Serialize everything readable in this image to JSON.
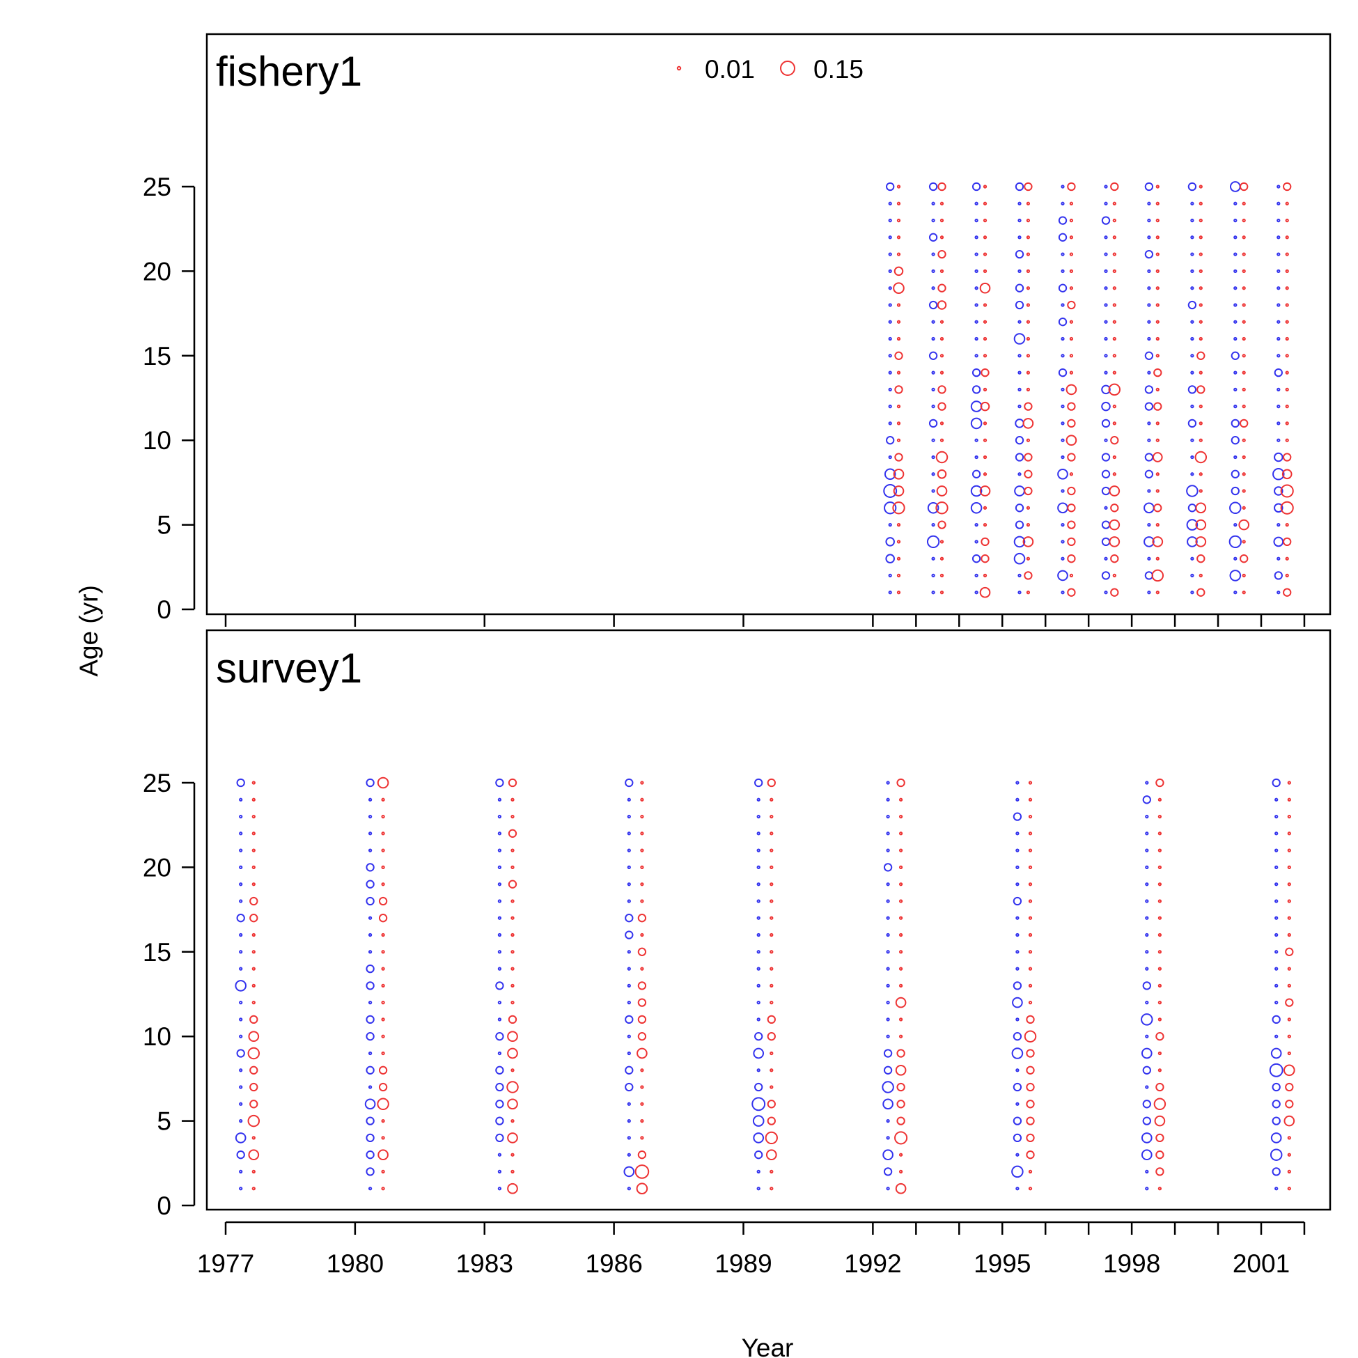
{
  "chart_data": {
    "type": "scatter",
    "subtype": "bubble",
    "xlabel": "Year",
    "ylabel": "Age (yr)",
    "x_ticks": [
      1977,
      1980,
      1983,
      1986,
      1989,
      1992,
      1995,
      1998,
      2001
    ],
    "y_ticks": [
      0,
      5,
      10,
      15,
      20,
      25
    ],
    "xlim": [
      1976.5,
      2003.5
    ],
    "ylim": [
      -0.5,
      33.5
    ],
    "legend": {
      "placement": "top-center",
      "entries": [
        {
          "label": "0.01",
          "value": 0.01
        },
        {
          "label": "0.15",
          "value": 0.15
        }
      ]
    },
    "colors": {
      "series_a": "#3333ee",
      "series_b": "#ee3333"
    },
    "ages": [
      1,
      2,
      3,
      4,
      5,
      6,
      7,
      8,
      9,
      10,
      11,
      12,
      13,
      14,
      15,
      16,
      17,
      18,
      19,
      20,
      21,
      22,
      23,
      24,
      25
    ],
    "panels": [
      {
        "title": "fishery1",
        "series": [
          {
            "color": "series_a",
            "points": [
              {
                "year": 1992.4,
                "big": {
                  "3": 0.05,
                  "4": 0.05,
                  "6": 0.1,
                  "7": 0.12,
                  "8": 0.08,
                  "10": 0.04,
                  "25": 0.04
                }
              },
              {
                "year": 1993.4,
                "big": {
                  "4": 0.1,
                  "6": 0.08,
                  "11": 0.04,
                  "15": 0.04,
                  "18": 0.04,
                  "22": 0.04,
                  "25": 0.04
                }
              },
              {
                "year": 1994.4,
                "big": {
                  "3": 0.04,
                  "6": 0.08,
                  "7": 0.08,
                  "8": 0.04,
                  "11": 0.08,
                  "12": 0.08,
                  "13": 0.04,
                  "14": 0.04,
                  "25": 0.04
                }
              },
              {
                "year": 1995.4,
                "big": {
                  "3": 0.08,
                  "4": 0.08,
                  "5": 0.04,
                  "6": 0.04,
                  "7": 0.07,
                  "9": 0.04,
                  "10": 0.04,
                  "11": 0.05,
                  "16": 0.08,
                  "18": 0.04,
                  "19": 0.04,
                  "21": 0.04,
                  "25": 0.04
                }
              },
              {
                "year": 1996.4,
                "big": {
                  "2": 0.07,
                  "6": 0.07,
                  "8": 0.07,
                  "14": 0.04,
                  "17": 0.04,
                  "19": 0.04,
                  "22": 0.04,
                  "23": 0.04
                }
              },
              {
                "year": 1997.4,
                "big": {
                  "2": 0.04,
                  "4": 0.04,
                  "5": 0.04,
                  "7": 0.04,
                  "8": 0.04,
                  "9": 0.04,
                  "11": 0.04,
                  "12": 0.05,
                  "13": 0.05,
                  "23": 0.04
                }
              },
              {
                "year": 1998.4,
                "big": {
                  "2": 0.04,
                  "4": 0.07,
                  "6": 0.07,
                  "8": 0.04,
                  "9": 0.04,
                  "12": 0.04,
                  "13": 0.04,
                  "15": 0.04,
                  "21": 0.04,
                  "25": 0.04
                }
              },
              {
                "year": 1999.4,
                "big": {
                  "4": 0.07,
                  "5": 0.08,
                  "6": 0.04,
                  "7": 0.09,
                  "11": 0.04,
                  "13": 0.04,
                  "18": 0.04,
                  "25": 0.04
                }
              },
              {
                "year": 2000.4,
                "big": {
                  "2": 0.08,
                  "4": 0.1,
                  "6": 0.09,
                  "7": 0.04,
                  "8": 0.04,
                  "10": 0.04,
                  "11": 0.04,
                  "15": 0.04,
                  "25": 0.07
                }
              },
              {
                "year": 2001.4,
                "big": {
                  "2": 0.04,
                  "4": 0.06,
                  "6": 0.05,
                  "7": 0.05,
                  "8": 0.09,
                  "9": 0.05,
                  "14": 0.04
                }
              }
            ]
          },
          {
            "color": "series_b",
            "points": [
              {
                "year": 1992.6,
                "big": {
                  "6": 0.1,
                  "7": 0.07,
                  "8": 0.07,
                  "9": 0.04,
                  "13": 0.04,
                  "15": 0.04,
                  "19": 0.08,
                  "20": 0.05
                }
              },
              {
                "year": 1993.6,
                "big": {
                  "5": 0.04,
                  "6": 0.1,
                  "7": 0.07,
                  "8": 0.05,
                  "9": 0.09,
                  "12": 0.04,
                  "13": 0.04,
                  "18": 0.05,
                  "19": 0.04,
                  "21": 0.04,
                  "25": 0.04
                }
              },
              {
                "year": 1994.6,
                "big": {
                  "1": 0.07,
                  "3": 0.04,
                  "4": 0.04,
                  "7": 0.07,
                  "12": 0.05,
                  "14": 0.04,
                  "19": 0.07
                }
              },
              {
                "year": 1995.6,
                "big": {
                  "2": 0.04,
                  "4": 0.07,
                  "7": 0.04,
                  "8": 0.04,
                  "9": 0.04,
                  "11": 0.07,
                  "12": 0.04,
                  "25": 0.04
                }
              },
              {
                "year": 1996.6,
                "big": {
                  "1": 0.04,
                  "3": 0.04,
                  "4": 0.04,
                  "5": 0.04,
                  "6": 0.04,
                  "7": 0.04,
                  "9": 0.04,
                  "10": 0.07,
                  "11": 0.04,
                  "12": 0.04,
                  "13": 0.07,
                  "18": 0.04,
                  "25": 0.04
                }
              },
              {
                "year": 1997.6,
                "big": {
                  "1": 0.04,
                  "3": 0.04,
                  "4": 0.07,
                  "5": 0.07,
                  "6": 0.04,
                  "7": 0.07,
                  "10": 0.04,
                  "13": 0.09,
                  "25": 0.04
                }
              },
              {
                "year": 1998.6,
                "big": {
                  "2": 0.09,
                  "4": 0.07,
                  "6": 0.04,
                  "9": 0.06,
                  "12": 0.04,
                  "14": 0.04
                }
              },
              {
                "year": 1999.6,
                "big": {
                  "1": 0.04,
                  "3": 0.04,
                  "4": 0.07,
                  "5": 0.07,
                  "6": 0.07,
                  "9": 0.09,
                  "13": 0.04,
                  "15": 0.04
                }
              },
              {
                "year": 2000.6,
                "big": {
                  "3": 0.04,
                  "5": 0.07,
                  "11": 0.04,
                  "25": 0.04
                }
              },
              {
                "year": 2001.6,
                "big": {
                  "1": 0.04,
                  "4": 0.04,
                  "6": 0.11,
                  "7": 0.11,
                  "8": 0.06,
                  "9": 0.04,
                  "25": 0.04
                }
              }
            ]
          }
        ]
      },
      {
        "title": "survey1",
        "series": [
          {
            "color": "series_a",
            "points": [
              {
                "year": 1977.35,
                "big": {
                  "3": 0.04,
                  "4": 0.07,
                  "9": 0.04,
                  "13": 0.08,
                  "17": 0.04,
                  "25": 0.04
                }
              },
              {
                "year": 1980.35,
                "big": {
                  "2": 0.04,
                  "3": 0.04,
                  "4": 0.04,
                  "5": 0.04,
                  "6": 0.07,
                  "8": 0.04,
                  "10": 0.04,
                  "11": 0.04,
                  "13": 0.04,
                  "14": 0.04,
                  "18": 0.04,
                  "19": 0.04,
                  "20": 0.04,
                  "25": 0.04
                }
              },
              {
                "year": 1983.35,
                "big": {
                  "4": 0.04,
                  "5": 0.04,
                  "6": 0.04,
                  "7": 0.04,
                  "8": 0.04,
                  "10": 0.04,
                  "13": 0.04,
                  "25": 0.04
                }
              },
              {
                "year": 1986.35,
                "big": {
                  "2": 0.07,
                  "7": 0.04,
                  "8": 0.04,
                  "11": 0.04,
                  "16": 0.04,
                  "17": 0.04,
                  "25": 0.04
                }
              },
              {
                "year": 1989.35,
                "big": {
                  "3": 0.04,
                  "4": 0.07,
                  "5": 0.08,
                  "6": 0.12,
                  "7": 0.04,
                  "9": 0.07,
                  "10": 0.04,
                  "25": 0.04
                }
              },
              {
                "year": 1992.35,
                "big": {
                  "2": 0.04,
                  "3": 0.07,
                  "6": 0.07,
                  "7": 0.09,
                  "8": 0.04,
                  "9": 0.04,
                  "20": 0.04
                }
              },
              {
                "year": 1995.35,
                "big": {
                  "2": 0.09,
                  "4": 0.04,
                  "5": 0.04,
                  "7": 0.04,
                  "9": 0.08,
                  "10": 0.04,
                  "12": 0.07,
                  "13": 0.04,
                  "18": 0.04,
                  "23": 0.04
                }
              },
              {
                "year": 1998.35,
                "big": {
                  "3": 0.07,
                  "4": 0.07,
                  "5": 0.04,
                  "6": 0.04,
                  "8": 0.04,
                  "9": 0.07,
                  "11": 0.09,
                  "13": 0.04,
                  "24": 0.04
                }
              },
              {
                "year": 2001.35,
                "big": {
                  "2": 0.04,
                  "3": 0.09,
                  "4": 0.07,
                  "5": 0.04,
                  "6": 0.04,
                  "7": 0.04,
                  "8": 0.12,
                  "9": 0.07,
                  "11": 0.04,
                  "25": 0.04
                }
              }
            ]
          },
          {
            "color": "series_b",
            "points": [
              {
                "year": 1977.65,
                "big": {
                  "3": 0.07,
                  "5": 0.09,
                  "6": 0.04,
                  "7": 0.04,
                  "8": 0.04,
                  "9": 0.09,
                  "10": 0.07,
                  "11": 0.04,
                  "17": 0.04,
                  "18": 0.04
                }
              },
              {
                "year": 1980.65,
                "big": {
                  "3": 0.07,
                  "6": 0.09,
                  "7": 0.04,
                  "8": 0.04,
                  "17": 0.04,
                  "18": 0.04,
                  "25": 0.08
                }
              },
              {
                "year": 1983.65,
                "big": {
                  "1": 0.07,
                  "4": 0.07,
                  "6": 0.07,
                  "7": 0.09,
                  "9": 0.07,
                  "10": 0.07,
                  "11": 0.04,
                  "19": 0.04,
                  "22": 0.04,
                  "25": 0.04
                }
              },
              {
                "year": 1986.65,
                "big": {
                  "1": 0.08,
                  "2": 0.13,
                  "3": 0.04,
                  "9": 0.07,
                  "10": 0.04,
                  "11": 0.04,
                  "12": 0.04,
                  "13": 0.04,
                  "15": 0.04,
                  "17": 0.04
                }
              },
              {
                "year": 1989.65,
                "big": {
                  "3": 0.07,
                  "4": 0.1,
                  "5": 0.04,
                  "6": 0.04,
                  "10": 0.04,
                  "11": 0.04,
                  "25": 0.04
                }
              },
              {
                "year": 1992.65,
                "big": {
                  "1": 0.07,
                  "4": 0.11,
                  "5": 0.04,
                  "6": 0.04,
                  "7": 0.04,
                  "8": 0.07,
                  "9": 0.04,
                  "12": 0.07,
                  "25": 0.04
                }
              },
              {
                "year": 1995.65,
                "big": {
                  "3": 0.04,
                  "4": 0.04,
                  "5": 0.04,
                  "6": 0.04,
                  "7": 0.04,
                  "8": 0.04,
                  "9": 0.04,
                  "10": 0.09,
                  "11": 0.04
                }
              },
              {
                "year": 1998.65,
                "big": {
                  "2": 0.04,
                  "3": 0.04,
                  "4": 0.04,
                  "5": 0.07,
                  "6": 0.09,
                  "7": 0.04,
                  "10": 0.04,
                  "25": 0.04
                }
              },
              {
                "year": 2001.65,
                "big": {
                  "5": 0.07,
                  "6": 0.04,
                  "7": 0.04,
                  "8": 0.08,
                  "12": 0.04,
                  "15": 0.04
                }
              }
            ]
          }
        ]
      }
    ]
  }
}
